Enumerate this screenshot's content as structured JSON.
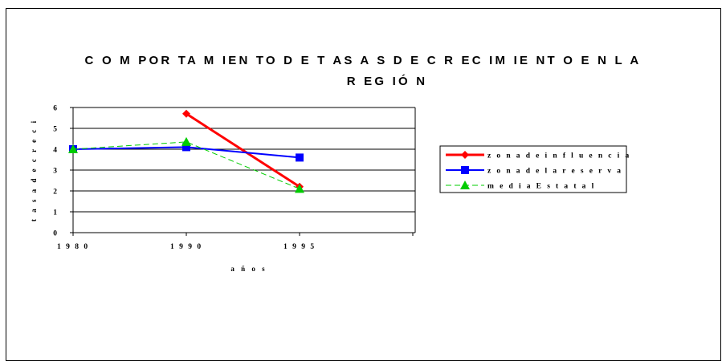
{
  "chart_data": {
    "type": "line",
    "title_line1": "C O M POR TA M IEN TO D E T AS A S D E C R EC IM IE NT O E N L A",
    "title_line2": "R EG IÓ N",
    "xlabel": "a ñ o s",
    "ylabel": "t a s a d e c r e c i",
    "categories": [
      "1 9 8 0",
      "1 9 9 0",
      "1 9 9 5"
    ],
    "x_positions": [
      0,
      1,
      2
    ],
    "x_range": [
      0,
      3
    ],
    "yticks": [
      "0",
      "1",
      "2",
      "3",
      "4",
      "5",
      "6"
    ],
    "ylim": [
      0,
      6
    ],
    "grid": true,
    "legend_position": "right",
    "series": [
      {
        "name": "z o n a d e i n f l u e n c i a",
        "values": [
          null,
          5.7,
          2.2
        ],
        "color": "#ff0000",
        "marker": "diamond",
        "line_style": "solid-thick"
      },
      {
        "name": "z o n a d e l a r e s e r v a",
        "values": [
          4.0,
          4.1,
          3.6
        ],
        "color": "#0000ff",
        "marker": "square",
        "line_style": "solid"
      },
      {
        "name": "m e d i a E s t a t a l",
        "values": [
          4.0,
          4.35,
          2.1
        ],
        "color": "#00cc00",
        "marker": "triangle",
        "line_style": "dashed"
      }
    ]
  }
}
